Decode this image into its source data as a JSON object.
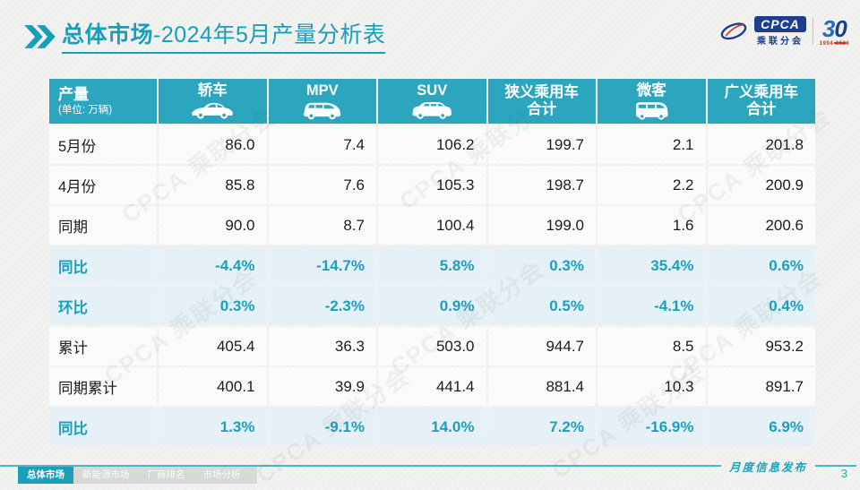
{
  "colors": {
    "accent": "#179fba",
    "table_header_bg": "#2ca6bf",
    "percent_row_bg": "#e4f0f7",
    "value_text": "#1c1c1c",
    "footer_tab_active_bg": "#1ba0b9",
    "footer_tab_inactive_bg": "#d8d8d6",
    "logo_blue": "#1d3e8d",
    "logo_red": "#d0342c"
  },
  "slide": {
    "title_section": "总体市场",
    "title_rest": "-2024年5月产量分析表",
    "footer_note": "月度信息发布",
    "page_number": "3"
  },
  "logo": {
    "name": "CPCA",
    "org": "乘联分会",
    "anniversary_first": "3",
    "anniversary_second": "0",
    "years": "1994-2024"
  },
  "watermark_text": "CPCA 乘联分会",
  "table_header": {
    "title": "产量",
    "unit": "(单位: 万辆)"
  },
  "ui": {
    "column_icons": [
      "sedan-icon",
      "mpv-icon",
      "suv-icon",
      null,
      "microvan-icon",
      null
    ]
  },
  "footer_tabs": [
    {
      "label": "总体市场",
      "active": true
    },
    {
      "label": "新能源市场",
      "active": false
    },
    {
      "label": "厂商排名",
      "active": false
    },
    {
      "label": "市场分析",
      "active": false
    }
  ],
  "chart_data": {
    "type": "table",
    "title": "总体市场-2024年5月产量分析表",
    "unit": "万辆",
    "columns": [
      "轿车",
      "MPV",
      "SUV",
      "狭义乘用车合计",
      "微客",
      "广义乘用车合计"
    ],
    "rows": [
      {
        "label": "5月份",
        "kind": "value",
        "values": [
          "86.0",
          "7.4",
          "106.2",
          "199.7",
          "2.1",
          "201.8"
        ]
      },
      {
        "label": "4月份",
        "kind": "value",
        "values": [
          "85.8",
          "7.6",
          "105.3",
          "198.7",
          "2.2",
          "200.9"
        ]
      },
      {
        "label": "同期",
        "kind": "value",
        "values": [
          "90.0",
          "8.7",
          "100.4",
          "199.0",
          "1.6",
          "200.6"
        ]
      },
      {
        "label": "同比",
        "kind": "percent",
        "values": [
          "-4.4%",
          "-14.7%",
          "5.8%",
          "0.3%",
          "35.4%",
          "0.6%"
        ]
      },
      {
        "label": "环比",
        "kind": "percent",
        "values": [
          "0.3%",
          "-2.3%",
          "0.9%",
          "0.5%",
          "-4.1%",
          "0.4%"
        ]
      },
      {
        "label": "累计",
        "kind": "value",
        "values": [
          "405.4",
          "36.3",
          "503.0",
          "944.7",
          "8.5",
          "953.2"
        ]
      },
      {
        "label": "同期累计",
        "kind": "value",
        "values": [
          "400.1",
          "39.9",
          "441.4",
          "881.4",
          "10.3",
          "891.7"
        ]
      },
      {
        "label": "同比",
        "kind": "percent",
        "values": [
          "1.3%",
          "-9.1%",
          "14.0%",
          "7.2%",
          "-16.9%",
          "6.9%"
        ]
      }
    ]
  }
}
